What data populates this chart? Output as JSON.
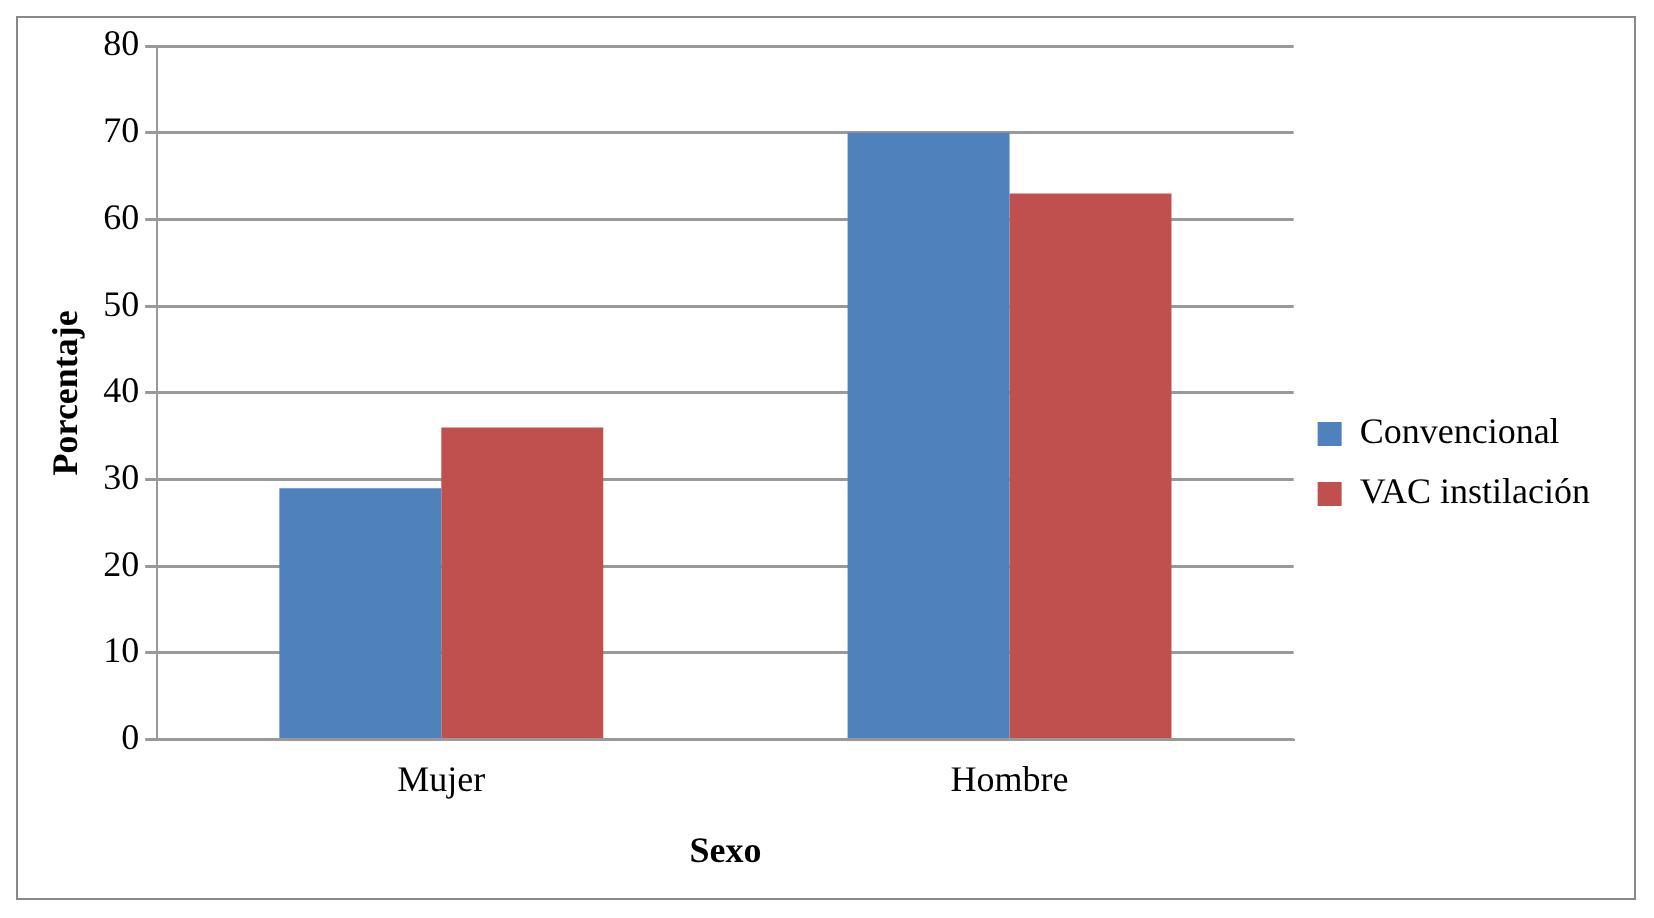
{
  "chart_data": {
    "type": "bar",
    "xlabel": "Sexo",
    "ylabel": "Porcentaje",
    "categories": [
      "Mujer",
      "Hombre"
    ],
    "series": [
      {
        "name": "Convencional",
        "color": "#4f81bd",
        "values": [
          29,
          70
        ]
      },
      {
        "name": "VAC instilación",
        "color": "#c0504d",
        "values": [
          36,
          63
        ]
      }
    ],
    "ylim": [
      0,
      80
    ],
    "yticks": [
      0,
      10,
      20,
      30,
      40,
      50,
      60,
      70,
      80
    ],
    "grid": "y",
    "legend": "right"
  }
}
